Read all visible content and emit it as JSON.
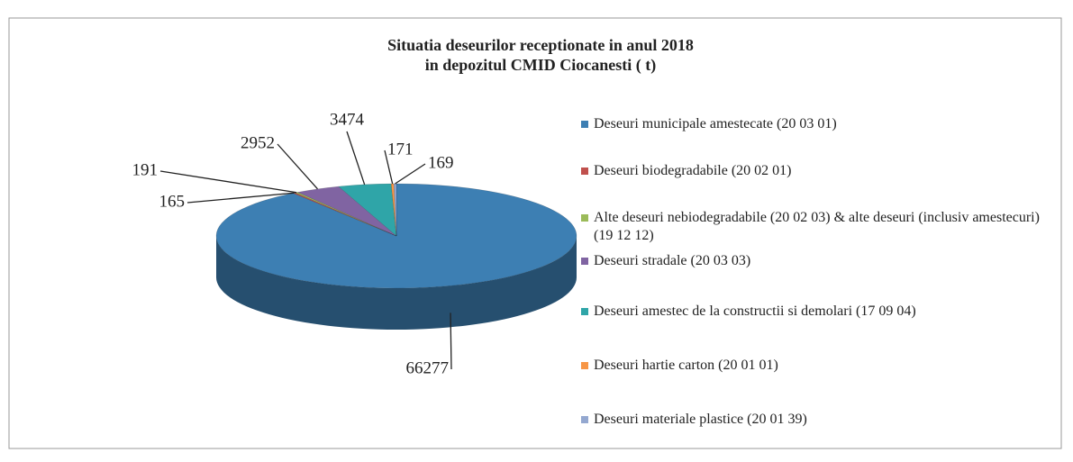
{
  "chart_data": {
    "type": "pie3d",
    "title": [
      "Situatia deseurilor receptionate in anul 2018",
      "in depozitul CMID Ciocanesti ( t)"
    ],
    "categories": [
      "Deseuri municipale amestecate (20 03 01)",
      "Deseuri biodegradabile (20 02 01)",
      "Alte deseuri nebiodegradabile (20 02 03) & alte deseuri (inclusiv amestecuri) (19 12 12)",
      "Deseuri stradale (20 03 03)",
      "Deseuri amestec de la constructii si demolari (17 09 04)",
      "Deseuri hartie carton (20 01 01)",
      "Deseuri materiale plastice (20 01 39)"
    ],
    "values": [
      66277,
      165,
      191,
      2952,
      3474,
      171,
      169
    ],
    "colors": [
      "#3d7fb3",
      "#c0504d",
      "#9bbb59",
      "#8064a2",
      "#2fa5a8",
      "#f79646",
      "#94a8d0"
    ],
    "legend": "right"
  }
}
